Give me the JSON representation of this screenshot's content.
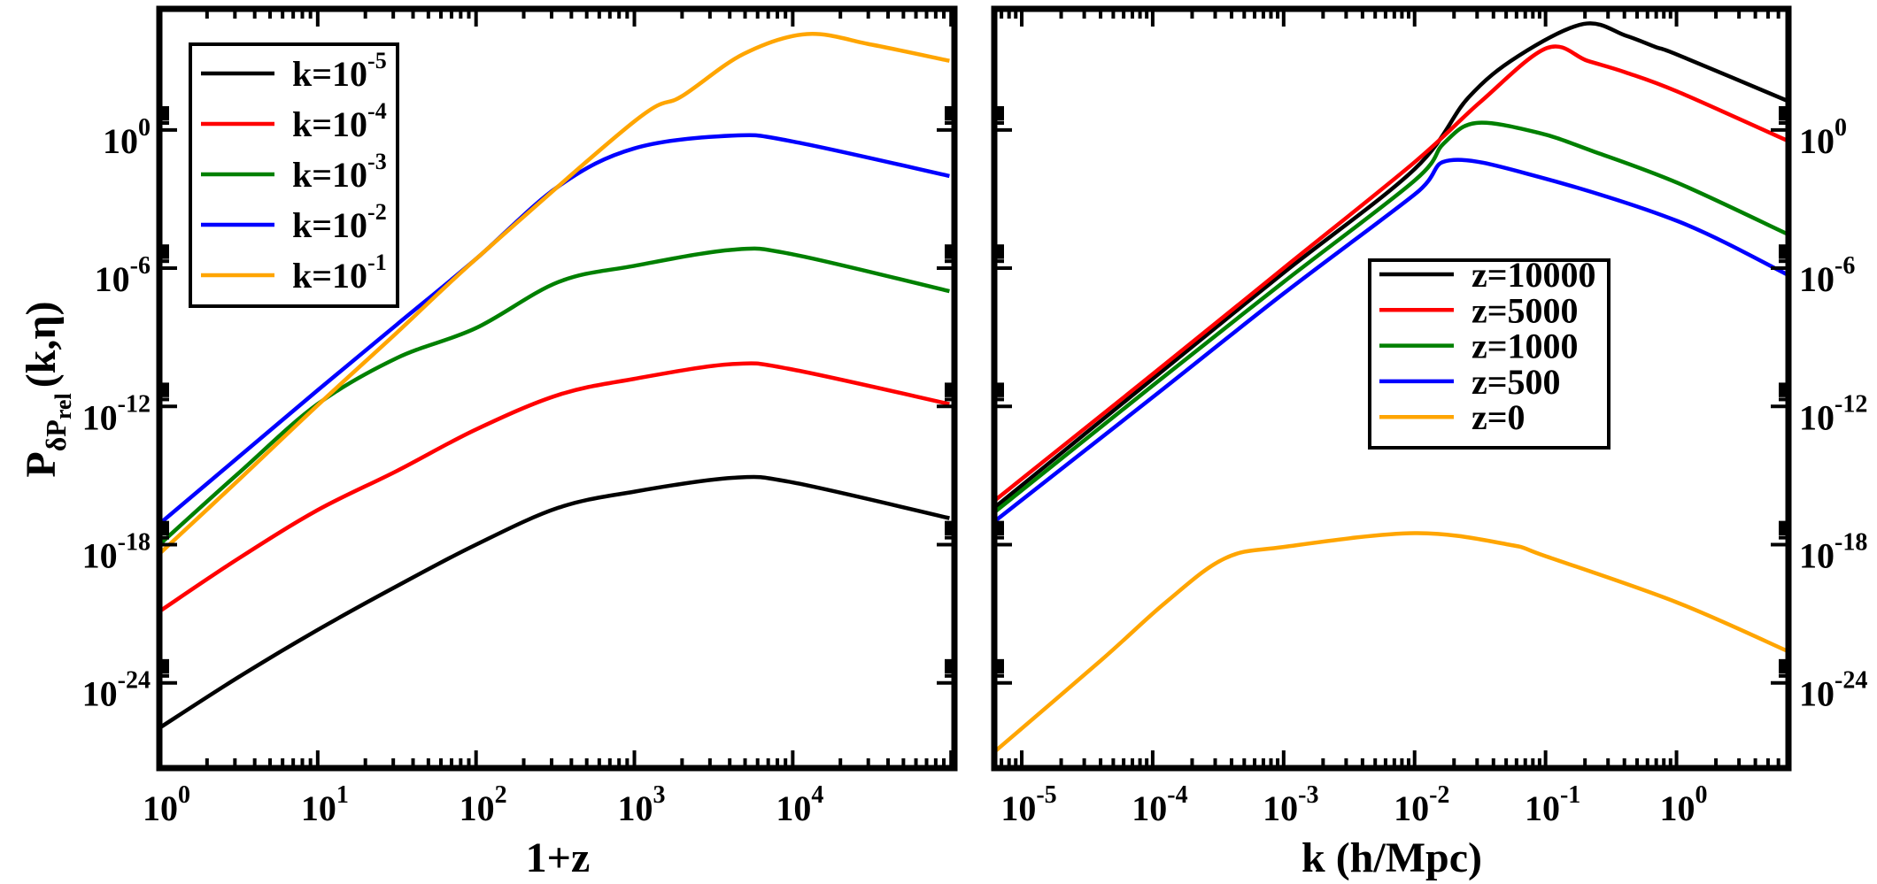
{
  "chart_data": [
    {
      "type": "line",
      "xlabel": "1+z",
      "ylabel": {
        "main": "P",
        "sub": "δP",
        "subsub": "rel",
        "args": "(k,η)"
      },
      "xscale": "log",
      "yscale": "log",
      "xlim": [
        1,
        105000
      ],
      "ylim": [
        2e-28,
        180000.0
      ],
      "grid": false,
      "legend_placement": "top-left",
      "x_ticks": [
        1,
        10,
        100,
        1000,
        10000
      ],
      "x_tick_labels": [
        "10^0",
        "10^1",
        "10^2",
        "10^3",
        "10^4"
      ],
      "y_ticks": [
        1,
        1e-06,
        1e-12,
        1e-18,
        1e-24
      ],
      "y_tick_labels": [
        "10^0",
        "10^-6",
        "10^-12",
        "10^-18",
        "10^-24"
      ],
      "y_tick_side": "left",
      "series": [
        {
          "name": "k=10^-5",
          "color": "#000000",
          "x": [
            1,
            3.16,
            10,
            31.6,
            100,
            331,
            1000,
            4170,
            10000,
            97700
          ],
          "y": [
            1.1e-26,
            1.78e-24,
            2e-22,
            1.58e-20,
            1e-18,
            3.98e-17,
            2e-16,
            7.94e-16,
            5.01e-16,
            1.41e-17
          ]
        },
        {
          "name": "k=10^-4",
          "color": "#ff0000",
          "x": [
            1,
            3.16,
            10,
            31.6,
            100,
            331,
            1000,
            4170,
            10000,
            97700
          ],
          "y": [
            1.26e-21,
            2.51e-19,
            3.16e-17,
            1.58e-15,
            1e-13,
            3.16e-12,
            1.58e-11,
            6.92e-11,
            3.98e-11,
            1.26e-12
          ]
        },
        {
          "name": "k=10^-3",
          "color": "#008000",
          "x": [
            1,
            3.16,
            10,
            31.6,
            100,
            331,
            1000,
            4170,
            10000,
            97700
          ],
          "y": [
            1e-18,
            1.26e-15,
            1.26e-12,
            1.26e-10,
            2.51e-09,
            2.51e-07,
            1.26e-06,
            6.31e-06,
            3.98e-06,
            1e-07
          ]
        },
        {
          "name": "k=10^-2",
          "color": "#0000ff",
          "x": [
            1,
            3.16,
            10,
            31.6,
            100,
            331,
            1000,
            4170,
            10000,
            97700
          ],
          "y": [
            7.94e-18,
            6.31e-15,
            5.01e-12,
            3.55e-09,
            2.51e-06,
            0.00355,
            0.158,
            0.562,
            0.316,
            0.01
          ]
        },
        {
          "name": "k=10^-1",
          "color": "#ffa500",
          "x": [
            1,
            3.16,
            10,
            31.6,
            100,
            1000,
            2000,
            4900,
            12300,
            31600,
            97700
          ],
          "y": [
            3.98e-19,
            6.31e-16,
            1.12e-12,
            1.58e-09,
            2.51e-06,
            2.34,
            29.5,
            2000,
            14500,
            5000,
            1000
          ]
        }
      ]
    },
    {
      "type": "line",
      "xlabel": "k (h/Mpc)",
      "xscale": "log",
      "yscale": "log",
      "xlim": [
        6.17e-06,
        7.16
      ],
      "ylim": [
        2e-28,
        180000.0
      ],
      "grid": false,
      "legend_placement": "center-right",
      "x_ticks": [
        1e-05,
        0.0001,
        0.001,
        0.01,
        0.1,
        1
      ],
      "x_tick_labels": [
        "10^-5",
        "10^-4",
        "10^-3",
        "10^-2",
        "10^-1",
        "10^0"
      ],
      "y_ticks": [
        1,
        1e-06,
        1e-12,
        1e-18,
        1e-24
      ],
      "y_tick_labels": [
        "10^0",
        "10^-6",
        "10^-12",
        "10^-18",
        "10^-24"
      ],
      "y_tick_side": "right",
      "series": [
        {
          "name": "z=10000",
          "color": "#000000",
          "x": [
            6.17e-06,
            0.0001,
            0.001,
            0.01,
            0.0257,
            0.0617,
            0.195,
            0.407,
            0.692,
            1.02,
            6.92
          ],
          "y": [
            3.98e-17,
            1.58e-11,
            6.31e-07,
            0.02,
            25.1,
            1580,
            39800,
            12600,
            3980,
            1820,
            19.1
          ]
        },
        {
          "name": "z=5000",
          "color": "#ff0000",
          "x": [
            6.17e-06,
            0.0001,
            0.001,
            0.01,
            0.0316,
            0.102,
            0.209,
            0.407,
            1.02,
            6.92
          ],
          "y": [
            7.94e-17,
            2.51e-11,
            1e-06,
            0.0398,
            15.8,
            3550,
            1000,
            316,
            45.7,
            0.355
          ]
        },
        {
          "name": "z=1000",
          "color": "#008000",
          "x": [
            6.17e-06,
            0.0001,
            0.001,
            0.01,
            0.0166,
            0.0295,
            0.0891,
            0.224,
            1.02,
            6.92
          ],
          "y": [
            2.51e-17,
            7.94e-12,
            2.51e-07,
            0.00631,
            0.251,
            2.0,
            0.741,
            0.126,
            0.00501,
            3.16e-05
          ]
        },
        {
          "name": "z=500",
          "color": "#0000ff",
          "x": [
            6.17e-06,
            0.0001,
            0.001,
            0.01,
            0.0186,
            0.0891,
            1.02,
            6.92
          ],
          "y": [
            1e-17,
            2.51e-12,
            7.94e-08,
            0.00158,
            0.0479,
            0.00912,
            0.00011,
            5.5e-07
          ]
        },
        {
          "name": "z=0",
          "color": "#ffa500",
          "x": [
            6.17e-06,
            4.07e-05,
            0.000126,
            0.000355,
            0.001,
            0.01,
            0.0525,
            0.1,
            1,
            6.92
          ],
          "y": [
            1e-27,
            1e-23,
            3.16e-21,
            2.51e-19,
            7.94e-19,
            3.16e-18,
            1e-18,
            3.16e-19,
            3.16e-21,
            2.51e-23
          ]
        }
      ]
    }
  ]
}
